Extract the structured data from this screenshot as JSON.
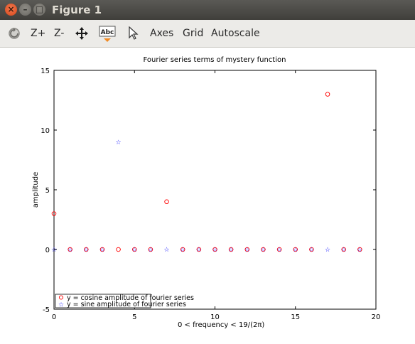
{
  "window": {
    "title": "Figure 1"
  },
  "toolbar": {
    "refresh_icon": "rotate-icon",
    "zoom_in_label": "Z+",
    "zoom_out_label": "Z-",
    "pan_icon": "move-arrows-icon",
    "text_icon_label": "Abc",
    "select_icon": "pointer-icon",
    "axes_label": "Axes",
    "grid_label": "Grid",
    "autoscale_label": "Autoscale"
  },
  "colors": {
    "cosine_series": "#ff0000",
    "sine_series": "#0000ff"
  },
  "chart_data": {
    "type": "scatter",
    "title": "Fourier series terms of mystery function",
    "xlabel": "0 < frequency < 19/(2π)",
    "ylabel": "amplitude",
    "xlim": [
      0,
      20
    ],
    "ylim": [
      -5,
      15
    ],
    "xticks": [
      "0",
      "5",
      "10",
      "15",
      "20"
    ],
    "yticks": [
      "-5",
      "0",
      "5",
      "10",
      "15"
    ],
    "grid": false,
    "legend_position": "bottom-left",
    "series": [
      {
        "name": "y = cosine amplitude of fourier series",
        "marker": "circle",
        "color": "#ff0000",
        "x": [
          0,
          1,
          2,
          3,
          4,
          5,
          6,
          7,
          8,
          9,
          10,
          11,
          12,
          13,
          14,
          15,
          16,
          17,
          18,
          19
        ],
        "y": [
          3,
          0,
          0,
          0,
          0,
          0,
          0,
          4,
          0,
          0,
          0,
          0,
          0,
          0,
          0,
          0,
          0,
          13,
          0,
          0
        ]
      },
      {
        "name": "y = sine amplitude of fourier series",
        "marker": "star",
        "color": "#0000ff",
        "x": [
          0,
          1,
          2,
          3,
          4,
          5,
          6,
          7,
          8,
          9,
          10,
          11,
          12,
          13,
          14,
          15,
          16,
          17,
          18,
          19
        ],
        "y": [
          0,
          0,
          0,
          0,
          9,
          0,
          0,
          0,
          0,
          0,
          0,
          0,
          0,
          0,
          0,
          0,
          0,
          0,
          0,
          0
        ]
      }
    ]
  }
}
